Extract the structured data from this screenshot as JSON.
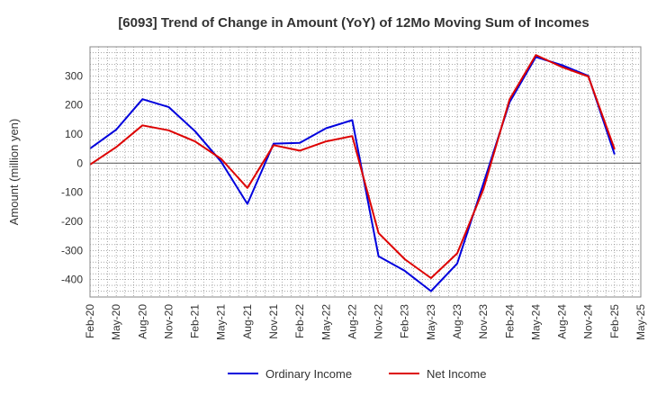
{
  "chart_data": {
    "type": "line",
    "title": "[6093]  Trend of Change in Amount (YoY) of 12Mo Moving Sum of Incomes",
    "xlabel": "",
    "ylabel": "Amount (million yen)",
    "ylim": [
      -460,
      400
    ],
    "yticks": [
      300,
      200,
      100,
      0,
      -100,
      -200,
      -300,
      -400
    ],
    "grid": true,
    "legend_position": "bottom",
    "categories": [
      "Feb-20",
      "May-20",
      "Aug-20",
      "Nov-20",
      "Feb-21",
      "May-21",
      "Aug-21",
      "Nov-21",
      "Feb-22",
      "May-22",
      "Aug-22",
      "Nov-22",
      "Feb-23",
      "May-23",
      "Aug-23",
      "Nov-23",
      "Feb-24",
      "May-24",
      "Aug-24",
      "Nov-24",
      "Feb-25",
      "May-25"
    ],
    "series": [
      {
        "name": "Ordinary Income",
        "color": "#0000dd",
        "values": [
          50,
          115,
          220,
          193,
          110,
          5,
          -140,
          67,
          70,
          120,
          148,
          -320,
          -370,
          -440,
          -345,
          -70,
          210,
          365,
          337,
          300,
          30,
          null
        ]
      },
      {
        "name": "Net Income",
        "color": "#dd0000",
        "values": [
          -5,
          55,
          130,
          113,
          75,
          15,
          -85,
          62,
          43,
          75,
          93,
          -240,
          -330,
          -395,
          -310,
          -90,
          220,
          372,
          330,
          298,
          48,
          null
        ]
      }
    ]
  }
}
